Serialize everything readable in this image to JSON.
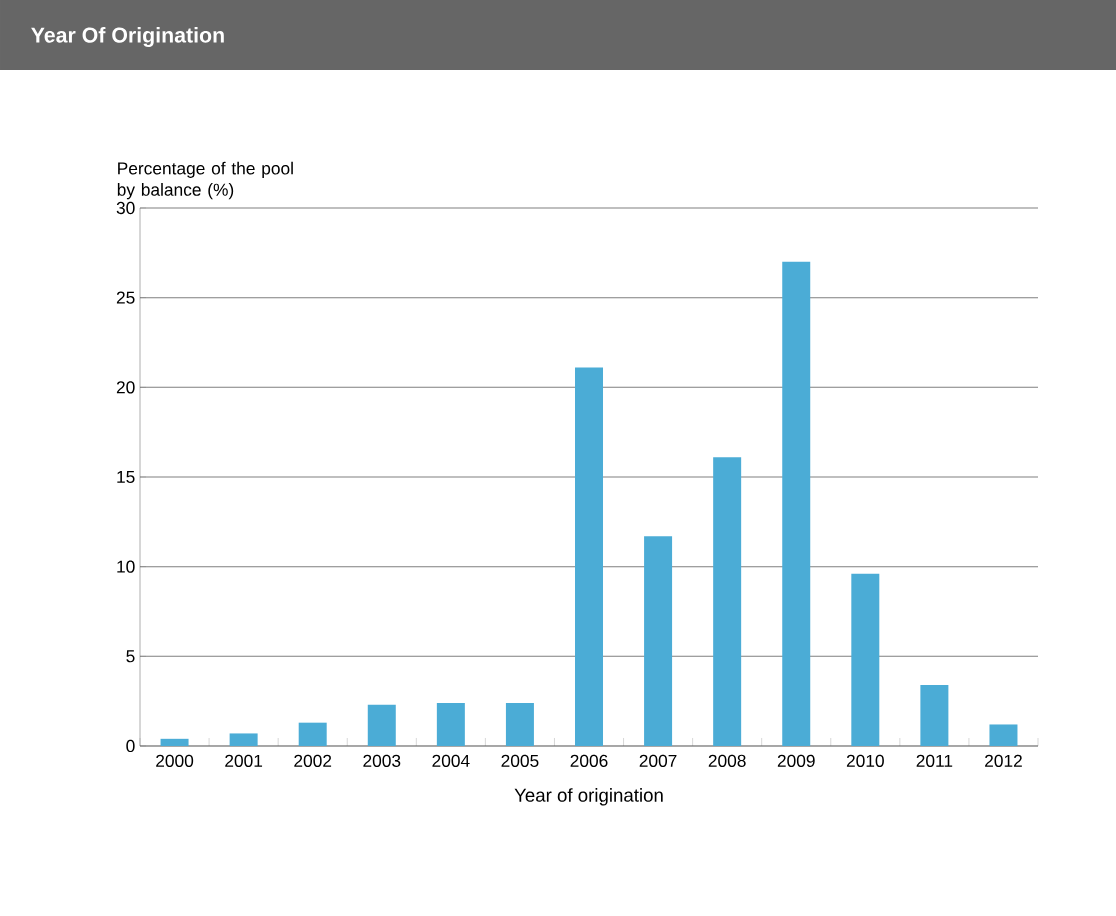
{
  "chart_data": {
    "type": "bar",
    "title": "Year Of Origination",
    "ylabel": "Percentage of the pool by balance (%)",
    "xlabel": "Year of origination",
    "categories": [
      "2000",
      "2001",
      "2002",
      "2003",
      "2004",
      "2005",
      "2006",
      "2007",
      "2008",
      "2009",
      "2010",
      "2011",
      "2012"
    ],
    "values": [
      0.4,
      0.7,
      1.3,
      2.3,
      2.4,
      2.4,
      21.1,
      11.7,
      16.1,
      27.0,
      9.6,
      3.4,
      1.2
    ],
    "color": "#4bacd6",
    "ylim": [
      0,
      30
    ],
    "yticks": [
      0,
      5,
      10,
      15,
      20,
      25,
      30
    ],
    "grid": "y"
  }
}
